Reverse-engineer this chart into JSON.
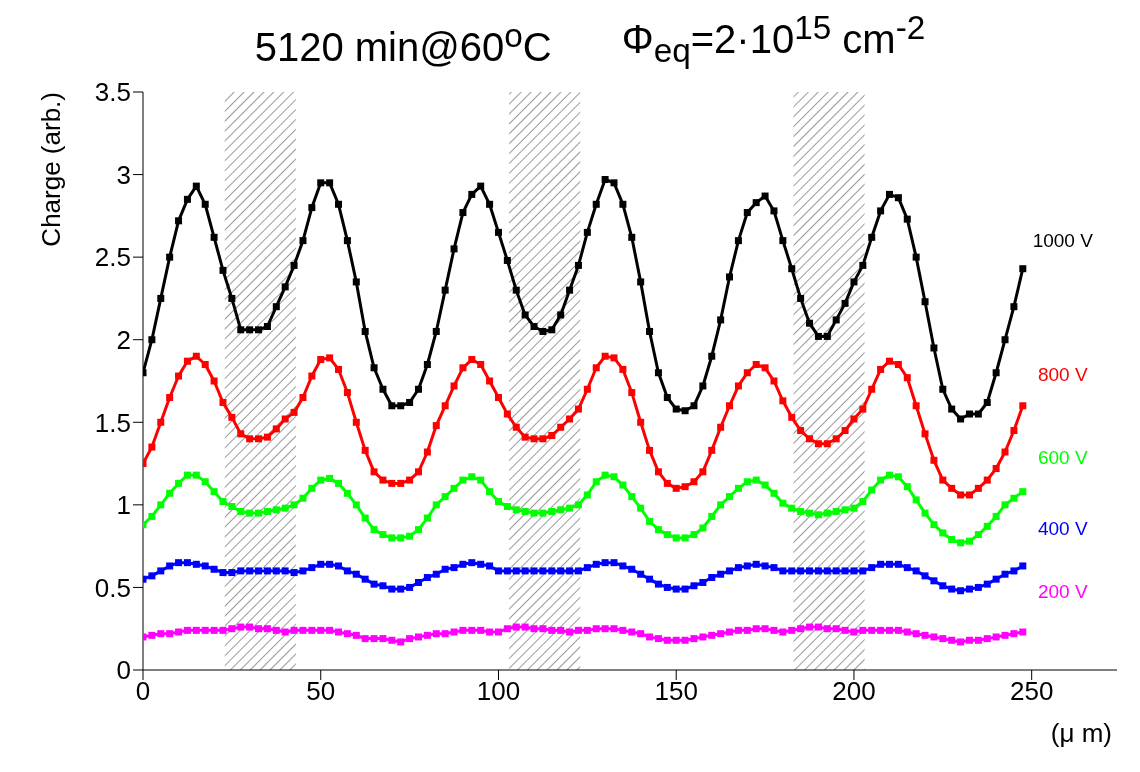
{
  "chart_data": {
    "type": "line",
    "title": "5120 min@60$^{o}$C",
    "subtitle": "Φ$_{eq}$=2·10$^{15}$ cm$^{-2}$",
    "xlabel": "(μ m)",
    "ylabel": "Charge (arb.)",
    "x": [
      0,
      2.5,
      5,
      7.5,
      10,
      12.5,
      15,
      17.5,
      20,
      22.5,
      25,
      27.5,
      30,
      32.5,
      35,
      37.5,
      40,
      42.5,
      45,
      47.5,
      50,
      52.5,
      55,
      57.5,
      60,
      62.5,
      65,
      67.5,
      70,
      72.5,
      75,
      77.5,
      80,
      82.5,
      85,
      87.5,
      90,
      92.5,
      95,
      97.5,
      100,
      102.5,
      105,
      107.5,
      110,
      112.5,
      115,
      117.5,
      120,
      122.5,
      125,
      127.5,
      130,
      132.5,
      135,
      137.5,
      140,
      142.5,
      145,
      147.5,
      150,
      152.5,
      155,
      157.5,
      160,
      162.5,
      165,
      167.5,
      170,
      172.5,
      175,
      177.5,
      180,
      182.5,
      185,
      187.5,
      190,
      192.5,
      195,
      197.5,
      200,
      202.5,
      205,
      207.5,
      210,
      212.5,
      215,
      217.5,
      220,
      222.5,
      225,
      227.5,
      230,
      232.5,
      235,
      237.5,
      240,
      242.5,
      245,
      247.5
    ],
    "series": [
      {
        "name": "1000 V",
        "color": "#000000",
        "values": [
          1.8,
          2.0,
          2.25,
          2.5,
          2.72,
          2.85,
          2.93,
          2.82,
          2.62,
          2.42,
          2.25,
          2.06,
          2.06,
          2.06,
          2.08,
          2.2,
          2.32,
          2.45,
          2.6,
          2.8,
          2.95,
          2.95,
          2.82,
          2.6,
          2.35,
          2.05,
          1.83,
          1.7,
          1.6,
          1.6,
          1.62,
          1.7,
          1.85,
          2.05,
          2.3,
          2.55,
          2.77,
          2.88,
          2.93,
          2.82,
          2.65,
          2.48,
          2.3,
          2.15,
          2.08,
          2.05,
          2.06,
          2.15,
          2.3,
          2.45,
          2.65,
          2.82,
          2.97,
          2.95,
          2.82,
          2.62,
          2.35,
          2.05,
          1.8,
          1.65,
          1.58,
          1.57,
          1.6,
          1.72,
          1.9,
          2.12,
          2.38,
          2.6,
          2.77,
          2.83,
          2.87,
          2.78,
          2.6,
          2.43,
          2.25,
          2.1,
          2.02,
          2.02,
          2.12,
          2.22,
          2.35,
          2.45,
          2.62,
          2.78,
          2.88,
          2.86,
          2.73,
          2.5,
          2.23,
          1.95,
          1.7,
          1.58,
          1.52,
          1.55,
          1.55,
          1.62,
          1.8,
          2.0,
          2.2,
          2.43
        ]
      },
      {
        "name": "800 V",
        "color": "#ff0000",
        "values": [
          1.25,
          1.35,
          1.5,
          1.65,
          1.78,
          1.87,
          1.9,
          1.85,
          1.75,
          1.62,
          1.53,
          1.43,
          1.4,
          1.4,
          1.41,
          1.46,
          1.52,
          1.56,
          1.65,
          1.78,
          1.88,
          1.89,
          1.82,
          1.68,
          1.5,
          1.33,
          1.2,
          1.15,
          1.13,
          1.13,
          1.15,
          1.2,
          1.32,
          1.48,
          1.6,
          1.72,
          1.83,
          1.88,
          1.85,
          1.75,
          1.65,
          1.55,
          1.47,
          1.41,
          1.4,
          1.4,
          1.42,
          1.47,
          1.52,
          1.58,
          1.7,
          1.83,
          1.9,
          1.89,
          1.82,
          1.68,
          1.5,
          1.33,
          1.2,
          1.13,
          1.1,
          1.11,
          1.14,
          1.2,
          1.33,
          1.47,
          1.6,
          1.72,
          1.8,
          1.85,
          1.83,
          1.75,
          1.63,
          1.53,
          1.45,
          1.4,
          1.37,
          1.37,
          1.4,
          1.45,
          1.52,
          1.58,
          1.7,
          1.82,
          1.87,
          1.85,
          1.77,
          1.6,
          1.43,
          1.27,
          1.15,
          1.1,
          1.06,
          1.06,
          1.1,
          1.15,
          1.22,
          1.32,
          1.45,
          1.6
        ]
      },
      {
        "name": "600 V",
        "color": "#00ff00",
        "values": [
          0.88,
          0.93,
          1.0,
          1.07,
          1.13,
          1.18,
          1.18,
          1.14,
          1.08,
          1.02,
          0.99,
          0.96,
          0.95,
          0.95,
          0.96,
          0.97,
          0.98,
          1.0,
          1.04,
          1.1,
          1.15,
          1.16,
          1.13,
          1.07,
          1.0,
          0.92,
          0.85,
          0.82,
          0.8,
          0.8,
          0.81,
          0.85,
          0.92,
          1.0,
          1.05,
          1.1,
          1.15,
          1.17,
          1.15,
          1.08,
          1.02,
          0.99,
          0.97,
          0.96,
          0.95,
          0.95,
          0.96,
          0.97,
          0.98,
          1.0,
          1.06,
          1.14,
          1.18,
          1.17,
          1.12,
          1.05,
          0.98,
          0.9,
          0.85,
          0.82,
          0.8,
          0.8,
          0.82,
          0.86,
          0.93,
          1.0,
          1.05,
          1.1,
          1.14,
          1.15,
          1.12,
          1.07,
          1.01,
          0.98,
          0.96,
          0.95,
          0.94,
          0.95,
          0.96,
          0.97,
          0.98,
          1.02,
          1.09,
          1.15,
          1.18,
          1.17,
          1.11,
          1.03,
          0.95,
          0.88,
          0.83,
          0.79,
          0.77,
          0.78,
          0.82,
          0.87,
          0.93,
          1.0,
          1.04,
          1.08
        ]
      },
      {
        "name": "400 V",
        "color": "#0000ff",
        "values": [
          0.55,
          0.57,
          0.6,
          0.63,
          0.65,
          0.65,
          0.64,
          0.63,
          0.61,
          0.59,
          0.59,
          0.6,
          0.6,
          0.6,
          0.6,
          0.6,
          0.6,
          0.59,
          0.6,
          0.62,
          0.64,
          0.64,
          0.63,
          0.6,
          0.58,
          0.55,
          0.52,
          0.51,
          0.49,
          0.49,
          0.5,
          0.53,
          0.56,
          0.58,
          0.61,
          0.62,
          0.64,
          0.65,
          0.64,
          0.63,
          0.6,
          0.6,
          0.6,
          0.6,
          0.6,
          0.6,
          0.6,
          0.6,
          0.6,
          0.6,
          0.62,
          0.64,
          0.65,
          0.65,
          0.63,
          0.61,
          0.58,
          0.55,
          0.52,
          0.5,
          0.49,
          0.49,
          0.51,
          0.53,
          0.56,
          0.58,
          0.6,
          0.62,
          0.63,
          0.64,
          0.63,
          0.62,
          0.6,
          0.6,
          0.6,
          0.6,
          0.6,
          0.6,
          0.6,
          0.6,
          0.6,
          0.6,
          0.62,
          0.64,
          0.64,
          0.64,
          0.62,
          0.6,
          0.57,
          0.54,
          0.51,
          0.49,
          0.48,
          0.49,
          0.5,
          0.52,
          0.55,
          0.58,
          0.6,
          0.63
        ]
      },
      {
        "name": "200 V",
        "color": "#ff00ff",
        "values": [
          0.2,
          0.21,
          0.22,
          0.22,
          0.23,
          0.24,
          0.24,
          0.24,
          0.24,
          0.24,
          0.25,
          0.26,
          0.26,
          0.25,
          0.25,
          0.24,
          0.23,
          0.24,
          0.24,
          0.24,
          0.24,
          0.24,
          0.23,
          0.22,
          0.21,
          0.19,
          0.19,
          0.19,
          0.18,
          0.17,
          0.19,
          0.2,
          0.21,
          0.22,
          0.22,
          0.23,
          0.24,
          0.24,
          0.24,
          0.23,
          0.23,
          0.25,
          0.26,
          0.26,
          0.25,
          0.25,
          0.24,
          0.24,
          0.23,
          0.24,
          0.24,
          0.25,
          0.25,
          0.25,
          0.24,
          0.23,
          0.22,
          0.2,
          0.19,
          0.18,
          0.18,
          0.18,
          0.19,
          0.2,
          0.21,
          0.22,
          0.23,
          0.24,
          0.24,
          0.25,
          0.25,
          0.24,
          0.23,
          0.24,
          0.25,
          0.26,
          0.26,
          0.25,
          0.25,
          0.24,
          0.23,
          0.24,
          0.24,
          0.24,
          0.24,
          0.24,
          0.23,
          0.22,
          0.21,
          0.2,
          0.19,
          0.18,
          0.17,
          0.18,
          0.18,
          0.19,
          0.2,
          0.21,
          0.22,
          0.23
        ]
      }
    ],
    "xlim": [
      0,
      274
    ],
    "xticks": [
      0,
      50,
      100,
      150,
      200,
      250
    ],
    "ylim": [
      0,
      3.5
    ],
    "yticks": [
      0,
      0.5,
      1,
      1.5,
      2,
      2.5,
      3,
      3.5
    ],
    "bands": [
      {
        "axis": "x",
        "from": 23,
        "to": 43,
        "color": "#555555"
      },
      {
        "axis": "x",
        "from": 103,
        "to": 123,
        "color": "#555555"
      },
      {
        "axis": "x",
        "from": 183,
        "to": 203,
        "color": "#555555"
      }
    ],
    "grid": false,
    "legend": false,
    "marker": "square",
    "line_style": "solid"
  }
}
